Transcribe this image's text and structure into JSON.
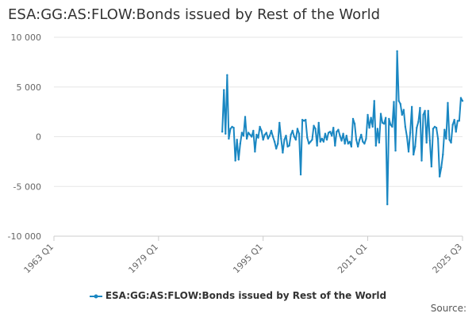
{
  "title": "ESA:GG:AS:FLOW:Bonds issued by Rest of the World",
  "source_label": "Source:",
  "colors": {
    "series": "#1a87c2",
    "grid": "#e6e6e6",
    "axis": "#cccccc",
    "text": "#666666"
  },
  "chart_data": {
    "type": "line",
    "title": "ESA:GG:AS:FLOW:Bonds issued by Rest of the World",
    "xlabel": "",
    "ylabel": "",
    "ylim": [
      -10000,
      10000
    ],
    "yticks": [
      10000,
      5000,
      0,
      -5000,
      -10000
    ],
    "ytick_labels": [
      "10 000",
      "5 000",
      "0",
      "-5 000",
      "-10 000"
    ],
    "xlim": [
      1963.0,
      2025.5
    ],
    "xticks": [
      1963.0,
      1979.0,
      1995.0,
      2011.0,
      2025.5
    ],
    "xtick_labels": [
      "1963 Q1",
      "1979 Q1",
      "1995 Q1",
      "2011 Q1",
      "2025 Q3"
    ],
    "legend_position": "bottom",
    "grid": true,
    "series": [
      {
        "name": "ESA:GG:AS:FLOW:Bonds issued by Rest of the World",
        "x": [
          1988.75,
          1989.0,
          1989.25,
          1989.5,
          1989.75,
          1990.0,
          1990.25,
          1990.5,
          1990.75,
          1991.0,
          1991.25,
          1991.5,
          1991.75,
          1992.0,
          1992.25,
          1992.5,
          1992.75,
          1993.0,
          1993.25,
          1993.5,
          1993.75,
          1994.0,
          1994.25,
          1994.5,
          1994.75,
          1995.0,
          1995.25,
          1995.5,
          1995.75,
          1996.0,
          1996.25,
          1996.5,
          1996.75,
          1997.0,
          1997.25,
          1997.5,
          1997.75,
          1998.0,
          1998.25,
          1998.5,
          1998.75,
          1999.0,
          1999.25,
          1999.5,
          1999.75,
          2000.0,
          2000.25,
          2000.5,
          2000.75,
          2001.0,
          2001.25,
          2001.5,
          2001.75,
          2002.0,
          2002.25,
          2002.5,
          2002.75,
          2003.0,
          2003.25,
          2003.5,
          2003.75,
          2004.0,
          2004.25,
          2004.5,
          2004.75,
          2005.0,
          2005.25,
          2005.5,
          2005.75,
          2006.0,
          2006.25,
          2006.5,
          2006.75,
          2007.0,
          2007.25,
          2007.5,
          2007.75,
          2008.0,
          2008.25,
          2008.5,
          2008.75,
          2009.0,
          2009.25,
          2009.5,
          2009.75,
          2010.0,
          2010.25,
          2010.5,
          2010.75,
          2011.0,
          2011.25,
          2011.5,
          2011.75,
          2012.0,
          2012.25,
          2012.5,
          2012.75,
          2013.0,
          2013.25,
          2013.5,
          2013.75,
          2014.0,
          2014.25,
          2014.5,
          2014.75,
          2015.0,
          2015.25,
          2015.5,
          2015.75,
          2016.0,
          2016.25,
          2016.5,
          2016.75,
          2017.0,
          2017.25,
          2017.5,
          2017.75,
          2018.0,
          2018.25,
          2018.5,
          2018.75,
          2019.0,
          2019.25,
          2019.5,
          2019.75,
          2020.0,
          2020.25,
          2020.5,
          2020.75,
          2021.0,
          2021.25,
          2021.5,
          2021.75,
          2022.0,
          2022.25,
          2022.5,
          2022.75,
          2023.0,
          2023.25,
          2023.5,
          2023.75,
          2024.0,
          2024.25,
          2024.5,
          2024.75,
          2025.0,
          2025.25,
          2025.5
        ],
        "values": [
          500,
          4700,
          300,
          6200,
          -200,
          800,
          1000,
          900,
          -2400,
          -300,
          -2300,
          -700,
          400,
          100,
          2000,
          -200,
          400,
          200,
          0,
          600,
          -1500,
          200,
          -100,
          1000,
          600,
          -300,
          200,
          400,
          -200,
          100,
          600,
          0,
          -500,
          -1200,
          -700,
          1400,
          -200,
          -1600,
          -300,
          100,
          -1000,
          -900,
          200,
          600,
          0,
          -300,
          800,
          300,
          -3800,
          1700,
          1600,
          1700,
          -100,
          -700,
          -500,
          -300,
          1100,
          800,
          -900,
          1400,
          -500,
          -200,
          -500,
          300,
          -300,
          400,
          500,
          100,
          900,
          -900,
          500,
          700,
          100,
          -400,
          300,
          -700,
          100,
          -700,
          -500,
          -1000,
          1800,
          1300,
          -300,
          -1000,
          -300,
          200,
          -500,
          -700,
          -200,
          2200,
          900,
          1900,
          1000,
          3600,
          -900,
          800,
          -600,
          2300,
          1400,
          1300,
          1900,
          -6800,
          1800,
          1200,
          1000,
          3500,
          -1400,
          8600,
          3600,
          3300,
          2200,
          2700,
          1000,
          0,
          -1500,
          400,
          3000,
          -1800,
          -1000,
          900,
          1500,
          2900,
          -2400,
          2200,
          2600,
          -600,
          2600,
          -400,
          -3000,
          800,
          1000,
          900,
          -200,
          -4000,
          -3100,
          -1800,
          700,
          -200,
          3400,
          -300,
          -600,
          1200,
          1700,
          500,
          1600,
          1600,
          3900,
          3600
        ]
      }
    ]
  }
}
